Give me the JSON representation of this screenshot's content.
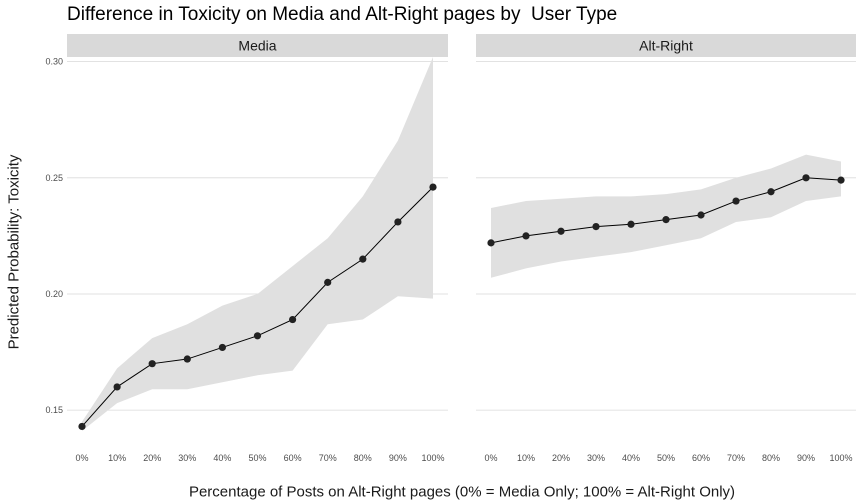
{
  "chart_data": {
    "type": "line",
    "title": "Difference in Toxicity on Media and Alt-Right pages by  User Type",
    "xlabel": "Percentage of Posts on Alt-Right pages (0% = Media Only; 100% = Alt-Right Only)",
    "ylabel": "Predicted Probability: Toxicity",
    "categories": [
      "0%",
      "10%",
      "20%",
      "30%",
      "40%",
      "50%",
      "60%",
      "70%",
      "80%",
      "90%",
      "100%"
    ],
    "ylim": [
      0.135,
      0.302
    ],
    "yticks": [
      "0.15",
      "0.20",
      "0.25",
      "0.30"
    ],
    "ytick_values": [
      0.15,
      0.2,
      0.25,
      0.3
    ],
    "grid": true,
    "facets": [
      {
        "name": "Media",
        "values": [
          0.143,
          0.16,
          0.17,
          0.172,
          0.177,
          0.182,
          0.189,
          0.205,
          0.215,
          0.231,
          0.246
        ],
        "lower": [
          0.141,
          0.153,
          0.159,
          0.159,
          0.162,
          0.165,
          0.167,
          0.187,
          0.189,
          0.199,
          0.198
        ],
        "upper": [
          0.145,
          0.168,
          0.181,
          0.187,
          0.195,
          0.2,
          0.212,
          0.224,
          0.242,
          0.266,
          0.302
        ]
      },
      {
        "name": "Alt-Right",
        "values": [
          0.222,
          0.225,
          0.227,
          0.229,
          0.23,
          0.232,
          0.234,
          0.24,
          0.244,
          0.25,
          0.249
        ],
        "lower": [
          0.207,
          0.211,
          0.214,
          0.216,
          0.218,
          0.221,
          0.224,
          0.231,
          0.233,
          0.24,
          0.242
        ],
        "upper": [
          0.237,
          0.24,
          0.241,
          0.242,
          0.242,
          0.243,
          0.245,
          0.25,
          0.254,
          0.26,
          0.257
        ]
      }
    ],
    "colors": {
      "ribbon": "#e0e0e0",
      "line": "#000000",
      "point": "#222222",
      "grid": "#d9d9d9",
      "strip": "#d9d9d9"
    }
  }
}
